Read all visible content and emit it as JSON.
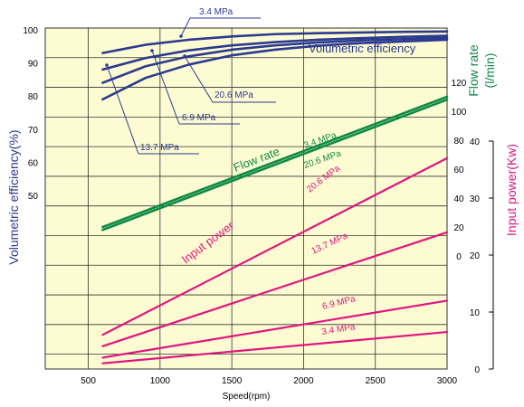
{
  "chart_data": {
    "type": "line",
    "x_label": "Speed(rpm)",
    "x_ticks": [
      500,
      1000,
      1500,
      2000,
      2500,
      3000
    ],
    "xlim": [
      200,
      3000
    ],
    "grid": true,
    "axes": {
      "efficiency": {
        "label": "Volumetric efficiency(%)",
        "ticks": [
          50,
          60,
          70,
          80,
          90,
          100
        ]
      },
      "flow": {
        "label_line1": "Flow rate",
        "label_line2": "(l/min)",
        "ticks": [
          0,
          20,
          40,
          60,
          80,
          100,
          120
        ]
      },
      "power": {
        "label": "Input power(Kw)",
        "ticks": [
          0,
          10,
          20,
          30,
          40
        ]
      }
    },
    "groups": [
      {
        "name": "Volumetric efficiency",
        "axis": "efficiency",
        "color": "#2b3a8f",
        "series": [
          {
            "name": "3.4 MPa",
            "x": [
              600,
              900,
              1200,
              1500,
              1800,
              2100,
              2400,
              2700,
              3000
            ],
            "values": [
              93,
              95.5,
              97,
              98,
              98.7,
              99,
              99.2,
              99.4,
              99.5
            ]
          },
          {
            "name": "20.6 MPa",
            "x": [
              600,
              900,
              1200,
              1500,
              1800,
              2100,
              2400,
              2700,
              3000
            ],
            "values": [
              88,
              91.5,
              93.8,
              95.3,
              96.3,
              97,
              97.5,
              97.9,
              98.2
            ]
          },
          {
            "name": "6.9 MPa",
            "x": [
              600,
              900,
              1200,
              1500,
              1800,
              2100,
              2400,
              2700,
              3000
            ],
            "values": [
              84,
              89,
              92,
              94,
              95.3,
              96.2,
              96.8,
              97.2,
              97.6
            ]
          },
          {
            "name": "13.7 MPa",
            "x": [
              600,
              900,
              1200,
              1500,
              1800,
              2100,
              2400,
              2700,
              3000
            ],
            "values": [
              79,
              85.5,
              89.5,
              92.3,
              94,
              95.2,
              96,
              96.5,
              97
            ]
          }
        ]
      },
      {
        "name": "Flow rate",
        "axis": "flow",
        "color": "#0e8a45",
        "series": [
          {
            "name": "3.4 MPa",
            "x": [
              600,
              3000
            ],
            "values": [
              20,
              110
            ]
          },
          {
            "name": "20.6 MPa",
            "x": [
              600,
              3000
            ],
            "values": [
              18,
              108
            ]
          }
        ]
      },
      {
        "name": "Input power",
        "axis": "power",
        "color": "#e0157f",
        "series": [
          {
            "name": "20.6 MPa",
            "x": [
              600,
              3000
            ],
            "values": [
              6,
              37
            ]
          },
          {
            "name": "13.7 MPa",
            "x": [
              600,
              3000
            ],
            "values": [
              4,
              24
            ]
          },
          {
            "name": "6.9 MPa",
            "x": [
              600,
              3000
            ],
            "values": [
              2,
              12
            ]
          },
          {
            "name": "3.4 MPa",
            "x": [
              600,
              3000
            ],
            "values": [
              1,
              6.5
            ]
          }
        ]
      }
    ]
  }
}
